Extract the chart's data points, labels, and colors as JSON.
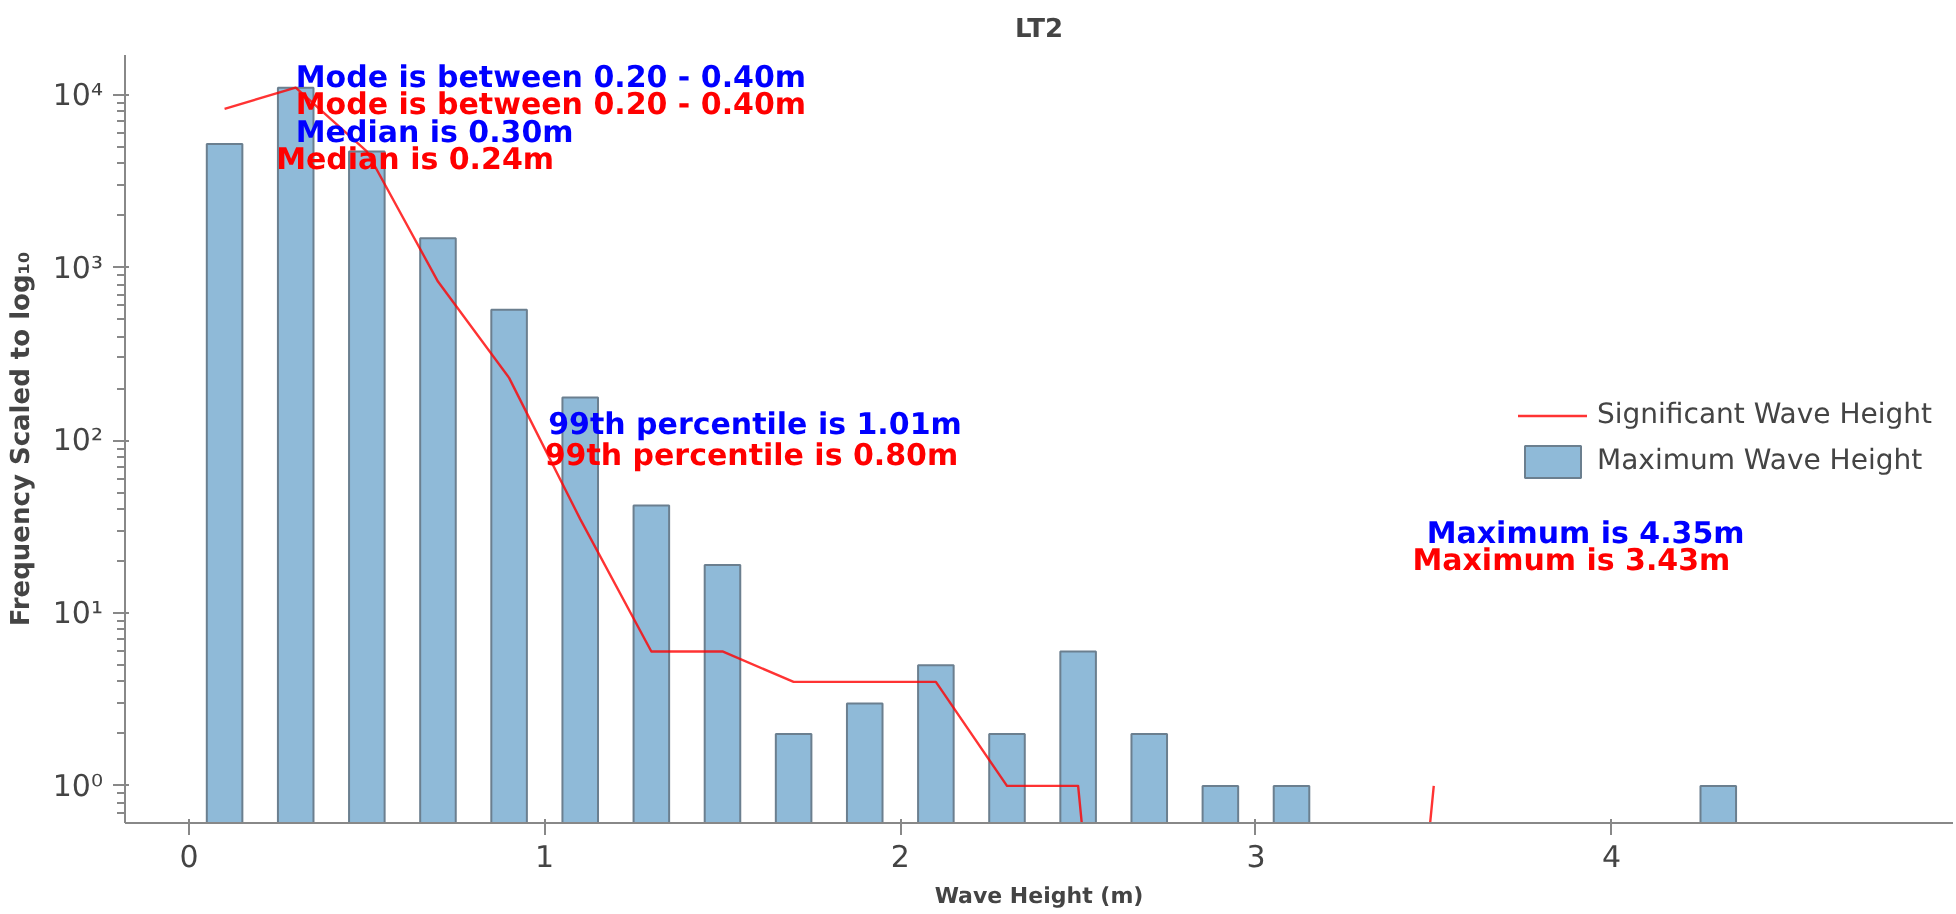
{
  "chart_data": {
    "type": "bar",
    "title": "LT2",
    "xlabel": "Wave Height (m)",
    "ylabel": "Frequency Scaled to log₁₀",
    "log": "y",
    "grid": false,
    "legend": "right",
    "marker": "none",
    "line_style": "solid",
    "xlim": [
      -0.18,
      4.96
    ],
    "xticks": [
      0,
      1,
      2,
      3,
      4
    ],
    "ylim": [
      0.61,
      17000
    ],
    "yticks": [
      {
        "value": 1,
        "label": "10⁰"
      },
      {
        "value": 10,
        "label": "10¹"
      },
      {
        "value": 100,
        "label": "10²"
      },
      {
        "value": 1000,
        "label": "10³"
      },
      {
        "value": 10000,
        "label": "10⁴"
      }
    ],
    "series": [
      {
        "name": "Significant Wave Height",
        "type": "line",
        "color": "#ff0000",
        "x": [
          0.1,
          0.3,
          0.5,
          0.7,
          0.9,
          1.1,
          1.3,
          1.5,
          1.7,
          1.9,
          2.1,
          2.3,
          2.5,
          2.7,
          2.9,
          3.1,
          3.3,
          3.5
        ],
        "values": [
          8300,
          11000,
          4700,
          830,
          230,
          35,
          6,
          6,
          4,
          4,
          4,
          1,
          1,
          null,
          null,
          null,
          null,
          1
        ]
      },
      {
        "name": "Maximum Wave Height",
        "color": "#8fbad8",
        "x": [
          0.1,
          0.3,
          0.5,
          0.7,
          0.9,
          1.1,
          1.3,
          1.5,
          1.7,
          1.9,
          2.1,
          2.3,
          2.5,
          2.7,
          2.9,
          3.1,
          3.3,
          3.5,
          3.7,
          3.9,
          4.1,
          4.3
        ],
        "values": [
          5200,
          11000,
          4700,
          1480,
          570,
          177,
          42,
          19,
          2,
          3,
          5,
          2,
          6,
          2,
          1,
          1,
          null,
          null,
          null,
          null,
          null,
          1
        ]
      }
    ],
    "annotations": [
      "Mode is between 0.20 - 0.40m",
      "Mode is between 0.20 - 0.40m",
      "Median is 0.30m",
      "Median is 0.24m",
      "99th percentile is 1.01m",
      "99th percentile is 0.80m",
      "Maximum is 4.35m",
      "Maximum is 3.43m"
    ]
  }
}
